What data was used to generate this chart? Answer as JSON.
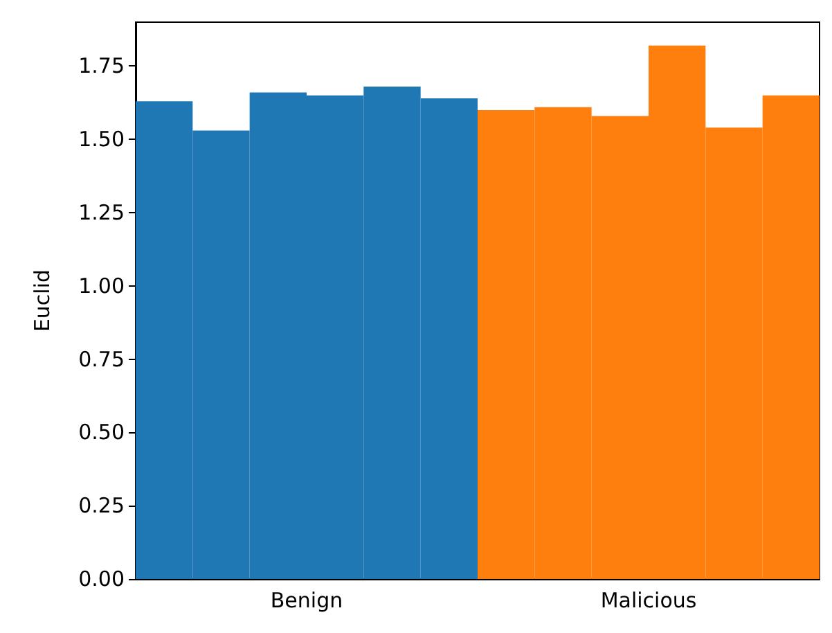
{
  "chart_data": {
    "type": "bar",
    "ylabel": "Euclid",
    "categories": [
      "Benign",
      "Malicious"
    ],
    "series": [
      {
        "colors": [
          "#1f77b4",
          "#ff7f0e"
        ],
        "values": [
          1.63,
          1.6
        ]
      },
      {
        "colors": [
          "#1f77b4",
          "#ff7f0e"
        ],
        "values": [
          1.53,
          1.61
        ]
      },
      {
        "colors": [
          "#1f77b4",
          "#ff7f0e"
        ],
        "values": [
          1.66,
          1.58
        ]
      },
      {
        "colors": [
          "#1f77b4",
          "#ff7f0e"
        ],
        "values": [
          1.65,
          1.82
        ]
      },
      {
        "colors": [
          "#1f77b4",
          "#ff7f0e"
        ],
        "values": [
          1.68,
          1.54
        ]
      },
      {
        "colors": [
          "#1f77b4",
          "#ff7f0e"
        ],
        "values": [
          1.64,
          1.65
        ]
      }
    ],
    "ylim": [
      0,
      1.9
    ],
    "yticks": [
      {
        "value": 0,
        "label": "0.00"
      },
      0.25,
      {
        "value": 0.5,
        "label": "0.50"
      },
      0.75,
      {
        "value": 1,
        "label": "1.00"
      },
      1.25,
      {
        "value": 1.5,
        "label": "1.50"
      },
      1.75
    ]
  }
}
